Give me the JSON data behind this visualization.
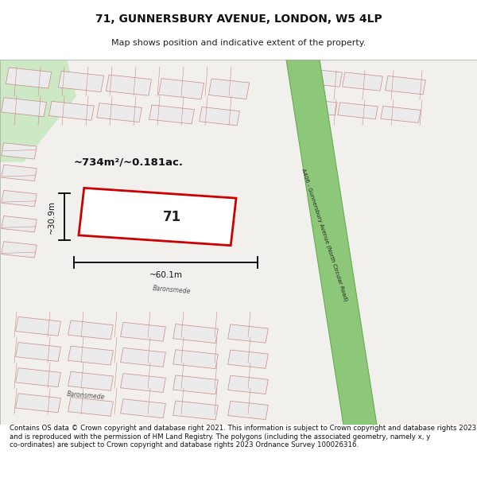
{
  "title": "71, GUNNERSBURY AVENUE, LONDON, W5 4LP",
  "subtitle": "Map shows position and indicative extent of the property.",
  "footer": "Contains OS data © Crown copyright and database right 2021. This information is subject to Crown copyright and database rights 2023 and is reproduced with the permission of HM Land Registry. The polygons (including the associated geometry, namely x, y co-ordinates) are subject to Crown copyright and database rights 2023 Ordnance Survey 100026316.",
  "area_text": "~734m²/~0.181ac.",
  "width_text": "~60.1m",
  "height_text": "~30.9m",
  "plot_number": "71",
  "road_label": "A406 - Gunnersbury Avenue (North Circular Road)",
  "road_label2": "Baronsmede",
  "road_label3": "Baronsmede",
  "map_bg": "#f2f0ed",
  "green_park": "#cde8c8",
  "green_road": "#8dc87a",
  "green_road_edge": "#6aaa56",
  "block_fill": "#e8e8e8",
  "block_edge": "#cc8888",
  "red_plot": "#cc0000",
  "title_fontsize": 10,
  "subtitle_fontsize": 8,
  "footer_fontsize": 6.2
}
